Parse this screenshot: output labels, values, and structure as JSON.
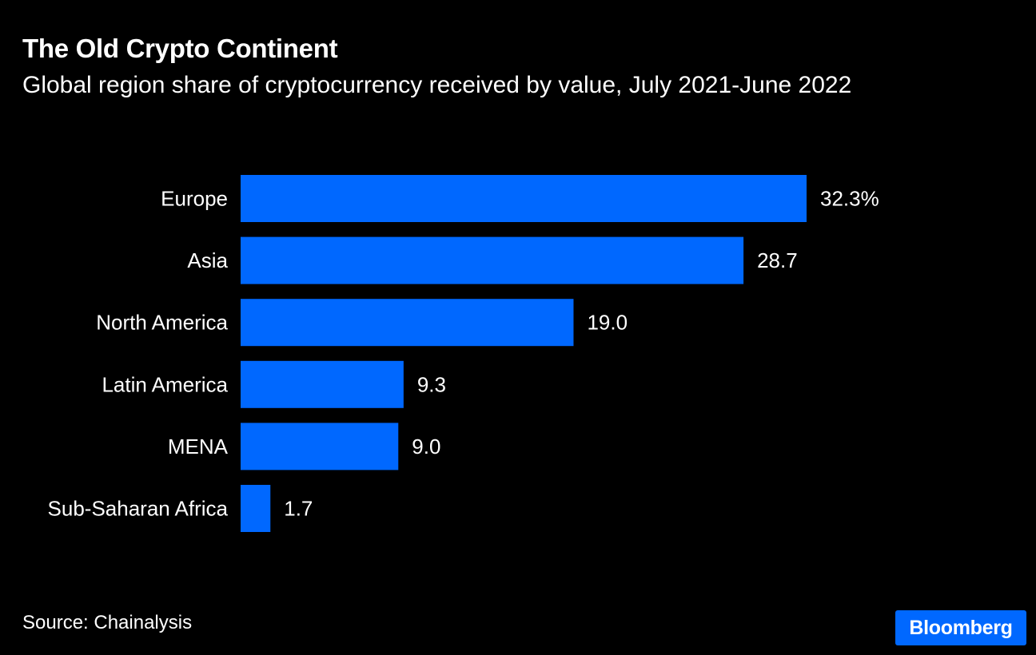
{
  "title": "The Old Crypto Continent",
  "subtitle": "Global region share of cryptocurrency received by value, July 2021-June 2022",
  "source": "Source: Chainalysis",
  "brand": {
    "name": "Bloomberg",
    "color": "#0068ff"
  },
  "colors": {
    "background": "#000000",
    "bar": "#0068ff",
    "text": "#ffffff"
  },
  "chart_data": {
    "type": "bar",
    "orientation": "horizontal",
    "title": "The Old Crypto Continent",
    "subtitle": "Global region share of cryptocurrency received by value, July 2021-June 2022",
    "categories": [
      "Europe",
      "Asia",
      "North America",
      "Latin America",
      "MENA",
      "Sub-Saharan Africa"
    ],
    "values": [
      32.3,
      28.7,
      19.0,
      9.3,
      9.0,
      1.7
    ],
    "value_labels": [
      "32.3%",
      "28.7",
      "19.0",
      "9.3",
      "9.0",
      "1.7"
    ],
    "unit": "%",
    "xlabel": "",
    "ylabel": "",
    "xlim": [
      0,
      32.3
    ],
    "grid": false,
    "legend": "none"
  }
}
